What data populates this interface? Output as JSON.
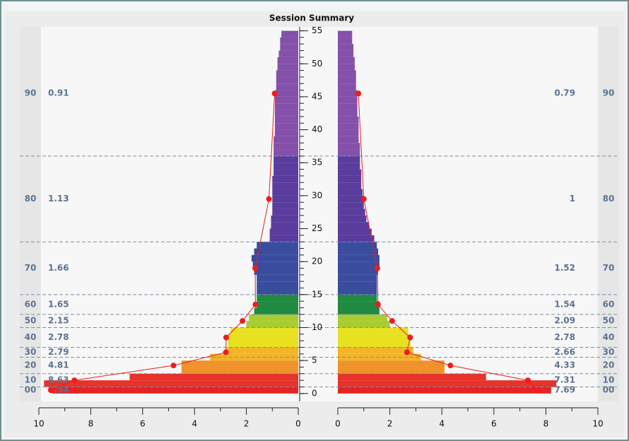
{
  "chart_data": {
    "type": "butterfly",
    "title": "Session Summary",
    "bins": [
      0,
      1,
      2,
      3,
      4,
      5,
      6,
      7,
      8,
      9,
      10,
      11,
      12,
      13,
      14,
      15,
      16,
      17,
      18,
      19,
      20,
      21,
      22,
      23,
      24,
      25,
      26,
      27,
      28,
      29,
      30,
      31,
      32,
      33,
      34,
      35,
      36,
      37,
      38,
      39,
      40,
      41,
      42,
      43,
      44,
      45,
      46,
      47,
      48,
      49,
      50,
      51,
      52,
      53,
      54,
      55
    ],
    "left_values": [
      9.5,
      9.8,
      6.5,
      4.5,
      4.5,
      3.4,
      2.8,
      2.7,
      2.7,
      2.6,
      2.0,
      1.9,
      1.7,
      1.6,
      1.6,
      1.6,
      1.6,
      1.6,
      1.7,
      1.75,
      1.8,
      1.7,
      1.6,
      1.1,
      1.1,
      1.05,
      1.05,
      1.0,
      1.0,
      1.0,
      1.0,
      1.0,
      1.0,
      0.95,
      0.95,
      0.95,
      0.95,
      0.95,
      0.95,
      0.9,
      0.9,
      0.9,
      0.9,
      0.9,
      0.9,
      0.9,
      0.85,
      0.85,
      0.85,
      0.8,
      0.8,
      0.75,
      0.7,
      0.7,
      0.65
    ],
    "right_values": [
      8.2,
      8.4,
      5.7,
      4.1,
      4.1,
      3.2,
      2.9,
      2.8,
      2.8,
      2.7,
      2.0,
      1.9,
      1.6,
      1.6,
      1.5,
      1.5,
      1.5,
      1.5,
      1.55,
      1.6,
      1.6,
      1.55,
      1.5,
      1.4,
      1.3,
      1.2,
      1.1,
      1.05,
      1.0,
      1.0,
      0.95,
      0.9,
      0.9,
      0.9,
      0.85,
      0.85,
      0.85,
      0.85,
      0.8,
      0.8,
      0.8,
      0.8,
      0.75,
      0.75,
      0.75,
      0.75,
      0.7,
      0.7,
      0.7,
      0.65,
      0.65,
      0.6,
      0.6,
      0.55,
      0.55
    ],
    "bands": [
      {
        "label": "00",
        "from": 0,
        "to": 1,
        "color": "#e42424",
        "left": 9.54,
        "right": 7.69
      },
      {
        "label": "10",
        "from": 1,
        "to": 3,
        "color": "#e8322a",
        "left": 8.63,
        "right": 7.31
      },
      {
        "label": "20",
        "from": 3,
        "to": 5.5,
        "color": "#f0922c",
        "left": 4.81,
        "right": 4.33
      },
      {
        "label": "30",
        "from": 5.5,
        "to": 7,
        "color": "#f3b428",
        "left": 2.79,
        "right": 2.66
      },
      {
        "label": "40",
        "from": 7,
        "to": 10,
        "color": "#e7e11e",
        "left": 2.78,
        "right": 2.78
      },
      {
        "label": "50",
        "from": 10,
        "to": 12,
        "color": "#a8cc32",
        "left": 2.15,
        "right": 2.09
      },
      {
        "label": "60",
        "from": 12,
        "to": 15,
        "color": "#1f8a40",
        "left": 1.65,
        "right": 1.54
      },
      {
        "label": "70",
        "from": 15,
        "to": 23,
        "color": "#3a4c9e",
        "left": 1.66,
        "right": 1.52
      },
      {
        "label": "80",
        "from": 23,
        "to": 36,
        "color": "#5a3c9e",
        "left": 1.13,
        "right": 1.0
      },
      {
        "label": "90",
        "from": 36,
        "to": 55,
        "color": "#8450aa",
        "left": 0.91,
        "right": 0.79
      }
    ],
    "line_color": "#ee1c1c",
    "ylim": [
      -1.2,
      55.6
    ],
    "yticks": [
      0,
      5,
      10,
      15,
      20,
      25,
      30,
      35,
      40,
      45,
      50,
      55
    ],
    "xlim": [
      0,
      10
    ],
    "xticks": [
      0,
      2,
      4,
      6,
      8,
      10
    ],
    "xticks_minor": [
      1,
      3,
      5,
      7,
      9
    ]
  }
}
